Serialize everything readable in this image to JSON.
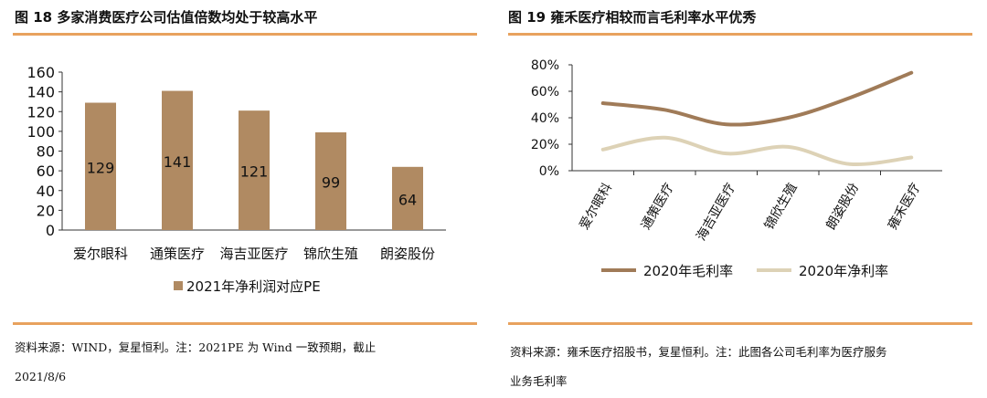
{
  "left": {
    "title": "图 18  多家消费医疗公司估值倍数均处于较高水平",
    "source_line1": "资料来源：WIND，复星恒利。注：2021PE 为 Wind 一致预期，截止",
    "source_line2": "2021/8/6",
    "chart_data": {
      "type": "bar",
      "categories": [
        "爱尔眼科",
        "通策医疗",
        "海吉亚医疗",
        "锦欣生殖",
        "朗姿股份"
      ],
      "series": [
        {
          "name": "2021年净利润对应PE",
          "values": [
            129,
            141,
            121,
            99,
            64
          ]
        }
      ],
      "ylim": [
        0,
        160
      ],
      "yticks": [
        0,
        20,
        40,
        60,
        80,
        100,
        120,
        140,
        160
      ],
      "bar_color": "#B08A62",
      "legend_position": "bottom"
    }
  },
  "right": {
    "title": "图 19  雍禾医疗相较而言毛利率水平优秀",
    "source_line1": "资料来源：雍禾医疗招股书，复星恒利。注：此图各公司毛利率为医疗服务",
    "source_line2": "业务毛利率",
    "chart_data": {
      "type": "line",
      "categories": [
        "爱尔眼科",
        "通策医疗",
        "海吉亚医疗",
        "锦欣生殖",
        "朗姿股份",
        "雍禾医疗"
      ],
      "series": [
        {
          "name": "2020年毛利率",
          "values": [
            51,
            46,
            35,
            40,
            55,
            74
          ],
          "color": "#A07B58"
        },
        {
          "name": "2020年净利率",
          "values": [
            16,
            25,
            13,
            18,
            5,
            10
          ],
          "color": "#DDD2B6"
        }
      ],
      "ylim": [
        0,
        80
      ],
      "yticks": [
        0,
        20,
        40,
        60,
        80
      ],
      "ytick_labels": [
        "0%",
        "20%",
        "40%",
        "60%",
        "80%"
      ],
      "legend_position": "bottom"
    }
  }
}
